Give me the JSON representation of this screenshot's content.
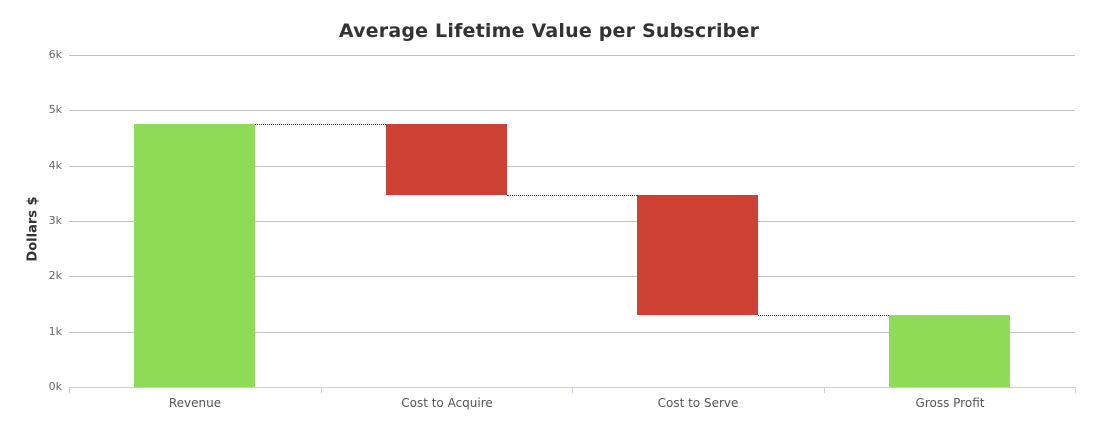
{
  "chart_data": {
    "type": "waterfall",
    "title": "Average Lifetime Value per Subscriber",
    "xlabel": "",
    "ylabel": "Dollars $",
    "ylim": [
      0,
      6000
    ],
    "yticks": [
      "0k",
      "1k",
      "2k",
      "3k",
      "4k",
      "5k",
      "6k"
    ],
    "categories": [
      "Revenue",
      "Cost to Acquire",
      "Cost to Serve",
      "Gross Profit"
    ],
    "values": [
      4750,
      -1280,
      -2170,
      1300
    ],
    "bar_ranges": [
      [
        0,
        4750
      ],
      [
        3470,
        4750
      ],
      [
        1300,
        3470
      ],
      [
        0,
        1300
      ]
    ],
    "colors": {
      "positive": "#8edb57",
      "negative": "#cc4133"
    },
    "grid": true,
    "legend": "none"
  }
}
